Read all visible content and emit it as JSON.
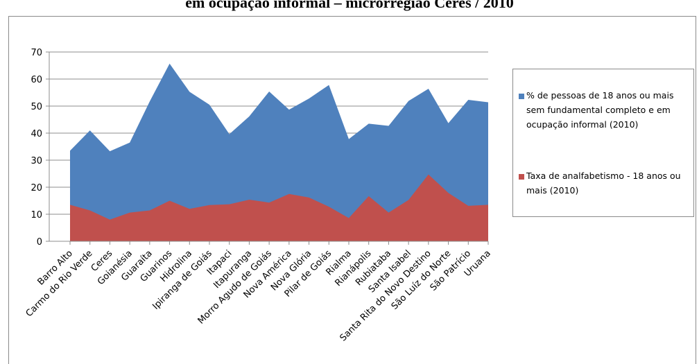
{
  "title": "em ocupação informal – microrregião Ceres / 2010",
  "chart_data": {
    "type": "area",
    "categories": [
      "Barro Alto",
      "Carmo do Rio Verde",
      "Ceres",
      "Goianésia",
      "Guaraíta",
      "Guarinos",
      "Hidrolina",
      "Ipiranga de Goiás",
      "Itapaci",
      "Itapuranga",
      "Morro Agudo de Goiás",
      "Nova América",
      "Nova Glória",
      "Pilar de Goiás",
      "Rialma",
      "Rianápolis",
      "Rubiataba",
      "Santa Isabel",
      "Santa Rita do Novo Destino",
      "São Luíz do Norte",
      "São Patrício",
      "Uruana"
    ],
    "series": [
      {
        "name": "% de pessoas de 18 anos ou mais sem fundamental completo e em ocupação informal (2010)",
        "color": "#4f81bd",
        "values": [
          33.5,
          41,
          33.3,
          36.5,
          51.7,
          65.7,
          55.3,
          50.5,
          39.6,
          46.2,
          55.4,
          48.7,
          52.8,
          57.8,
          37.8,
          43.5,
          42.7,
          51.9,
          56.4,
          43.7,
          52.3,
          51.4
        ]
      },
      {
        "name": "Taxa de analfabetismo - 18 anos ou mais (2010)",
        "color": "#c0504d",
        "values": [
          13.5,
          11.4,
          8,
          10.6,
          11.4,
          15,
          12,
          13.4,
          13.7,
          15.4,
          14.3,
          17.5,
          16.2,
          12.8,
          8.6,
          16.7,
          10.6,
          15.3,
          24.7,
          17.9,
          13.1,
          13.5
        ]
      }
    ],
    "ylim": [
      0,
      70
    ],
    "yticks": [
      "0",
      "10",
      "20",
      "30",
      "40",
      "50",
      "60",
      "70"
    ],
    "grid": true,
    "legend_position": "right"
  }
}
